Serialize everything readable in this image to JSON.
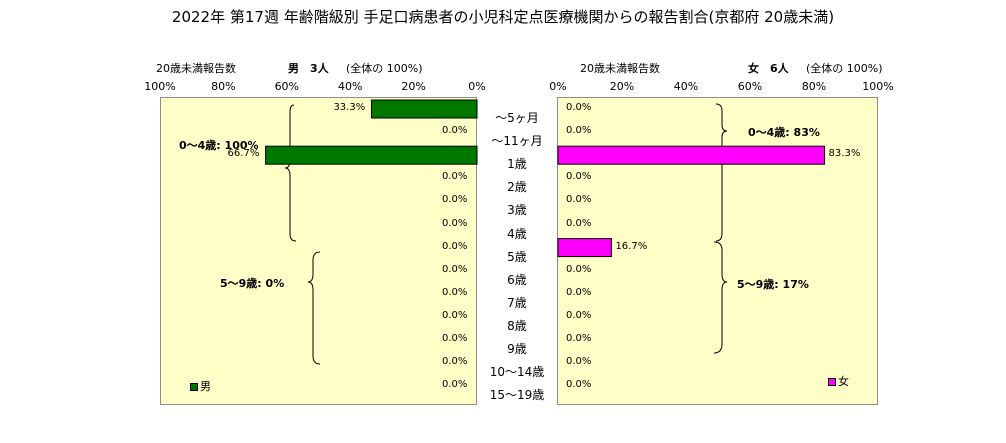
{
  "title": "2022年 第17週  年齢階級別 手足口病患者の小児科定点医療機関からの報告割合(京都府 20歳未満)",
  "male_header": {
    "label": "20歳未満報告数",
    "sex": "男",
    "count": "3人",
    "share": "(全体の  100%)"
  },
  "female_header": {
    "label": "20歳未満報告数",
    "sex": "女",
    "count": "6人",
    "share": "(全体の  100%)"
  },
  "male_ticks": [
    "100%",
    "80%",
    "60%",
    "40%",
    "20%",
    "0%"
  ],
  "female_ticks": [
    "0%",
    "20%",
    "40%",
    "60%",
    "80%",
    "100%"
  ],
  "groups": {
    "male_0_4": "0～4歳: 100%",
    "male_5_9": "5～9歳: 0%",
    "female_0_4": "0～4歳: 83%",
    "female_5_9": "5～9歳: 17%"
  },
  "legend": {
    "male": "男",
    "female": "女"
  },
  "colors": {
    "male": "#007800",
    "female": "#ff00ff",
    "plot_bg": "#ffffc8"
  },
  "chart_data": {
    "type": "bar",
    "orientation": "horizontal-butterfly",
    "title": "2022年 第17週  年齢階級別 手足口病患者の小児科定点医療機関からの報告割合(京都府 20歳未満)",
    "categories": [
      "～5ヶ月",
      "～11ヶ月",
      "1歳",
      "2歳",
      "3歳",
      "4歳",
      "5歳",
      "6歳",
      "7歳",
      "8歳",
      "9歳",
      "10～14歳",
      "15～19歳"
    ],
    "xlim": [
      0,
      100
    ],
    "series": [
      {
        "name": "男",
        "values": [
          33.3,
          0.0,
          66.7,
          0.0,
          0.0,
          0.0,
          0.0,
          0.0,
          0.0,
          0.0,
          0.0,
          0.0,
          0.0
        ],
        "labels": [
          "33.3%",
          "0.0%",
          "66.7%",
          "0.0%",
          "0.0%",
          "0.0%",
          "0.0%",
          "0.0%",
          "0.0%",
          "0.0%",
          "0.0%",
          "0.0%",
          "0.0%"
        ]
      },
      {
        "name": "女",
        "values": [
          0.0,
          0.0,
          83.3,
          0.0,
          0.0,
          0.0,
          16.7,
          0.0,
          0.0,
          0.0,
          0.0,
          0.0,
          0.0
        ],
        "labels": [
          "0.0%",
          "0.0%",
          "83.3%",
          "0.0%",
          "0.0%",
          "0.0%",
          "16.7%",
          "0.0%",
          "0.0%",
          "0.0%",
          "0.0%",
          "0.0%",
          "0.0%"
        ]
      }
    ]
  }
}
